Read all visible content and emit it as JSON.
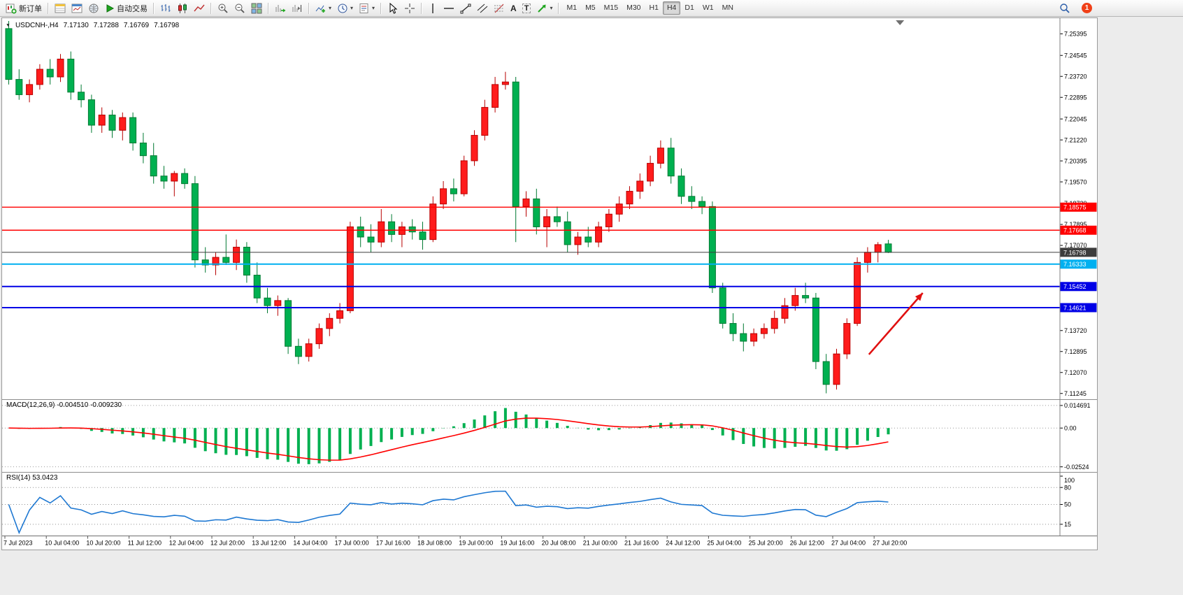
{
  "toolbar": {
    "new_order_label": "新订单",
    "autotrade_label": "自动交易",
    "timeframes": [
      "M1",
      "M5",
      "M15",
      "M30",
      "H1",
      "H4",
      "D1",
      "W1",
      "MN"
    ],
    "active_timeframe": "H4",
    "notification_badge": "1",
    "text_tool_label": "A",
    "label_tool_label": "T"
  },
  "chart_header": {
    "symbol_period": "USDCNH-,H4",
    "open": "7.17130",
    "high": "7.17288",
    "low": "7.16769",
    "close": "7.16798"
  },
  "chart_data": {
    "type": "candlestick",
    "symbol": "USDCNH-",
    "timeframe": "H4",
    "colors": {
      "up": "#FF1C1C",
      "up_border": "#B80000",
      "down": "#00B050",
      "down_border": "#007A32",
      "macd_hist": "#00B050",
      "macd_signal": "#FF0000",
      "rsi": "#1E78D2",
      "background": "#FFFFFF"
    },
    "price_axis": [
      "7.25395",
      "7.24545",
      "7.23720",
      "7.22895",
      "7.22045",
      "7.21220",
      "7.20395",
      "7.19570",
      "7.18720",
      "7.17895",
      "7.17070",
      "7.16245",
      "7.15395",
      "7.14570",
      "7.13720",
      "7.12895",
      "7.12070",
      "7.11245"
    ],
    "time_axis": [
      {
        "label": "7 Jul 2023",
        "i": 0
      },
      {
        "label": "10 Jul 04:00",
        "i": 4
      },
      {
        "label": "10 Jul 20:00",
        "i": 8
      },
      {
        "label": "11 Jul 12:00",
        "i": 12
      },
      {
        "label": "12 Jul 04:00",
        "i": 16
      },
      {
        "label": "12 Jul 20:00",
        "i": 20
      },
      {
        "label": "13 Jul 12:00",
        "i": 24
      },
      {
        "label": "14 Jul 04:00",
        "i": 28
      },
      {
        "label": "17 Jul 00:00",
        "i": 32
      },
      {
        "label": "17 Jul 16:00",
        "i": 36
      },
      {
        "label": "18 Jul 08:00",
        "i": 40
      },
      {
        "label": "19 Jul 00:00",
        "i": 44
      },
      {
        "label": "19 Jul 16:00",
        "i": 48
      },
      {
        "label": "20 Jul 08:00",
        "i": 52
      },
      {
        "label": "21 Jul 00:00",
        "i": 56
      },
      {
        "label": "21 Jul 16:00",
        "i": 60
      },
      {
        "label": "24 Jul 12:00",
        "i": 64
      },
      {
        "label": "25 Jul 04:00",
        "i": 68
      },
      {
        "label": "25 Jul 20:00",
        "i": 72
      },
      {
        "label": "26 Jul 12:00",
        "i": 76
      },
      {
        "label": "27 Jul 04:00",
        "i": 80
      },
      {
        "label": "27 Jul 20:00",
        "i": 84
      }
    ],
    "candles": [
      [
        7.256,
        7.259,
        7.234,
        7.236
      ],
      [
        7.236,
        7.24,
        7.228,
        7.23
      ],
      [
        7.23,
        7.236,
        7.227,
        7.234
      ],
      [
        7.234,
        7.242,
        7.232,
        7.24
      ],
      [
        7.24,
        7.244,
        7.234,
        7.237
      ],
      [
        7.237,
        7.246,
        7.235,
        7.244
      ],
      [
        7.244,
        7.247,
        7.228,
        7.231
      ],
      [
        7.231,
        7.234,
        7.225,
        7.228
      ],
      [
        7.228,
        7.23,
        7.215,
        7.218
      ],
      [
        7.218,
        7.225,
        7.215,
        7.222
      ],
      [
        7.222,
        7.224,
        7.213,
        7.216
      ],
      [
        7.216,
        7.223,
        7.212,
        7.221
      ],
      [
        7.221,
        7.223,
        7.208,
        7.211
      ],
      [
        7.211,
        7.215,
        7.203,
        7.206
      ],
      [
        7.206,
        7.211,
        7.195,
        7.198
      ],
      [
        7.198,
        7.202,
        7.193,
        7.196
      ],
      [
        7.196,
        7.2,
        7.19,
        7.199
      ],
      [
        7.199,
        7.201,
        7.193,
        7.195
      ],
      [
        7.195,
        7.198,
        7.162,
        7.165
      ],
      [
        7.165,
        7.17,
        7.16,
        7.163
      ],
      [
        7.163,
        7.168,
        7.159,
        7.166
      ],
      [
        7.166,
        7.175,
        7.163,
        7.164
      ],
      [
        7.164,
        7.173,
        7.161,
        7.17
      ],
      [
        7.17,
        7.172,
        7.156,
        7.159
      ],
      [
        7.159,
        7.164,
        7.148,
        7.15
      ],
      [
        7.15,
        7.154,
        7.144,
        7.147
      ],
      [
        7.147,
        7.151,
        7.143,
        7.149
      ],
      [
        7.149,
        7.15,
        7.128,
        7.131
      ],
      [
        7.131,
        7.134,
        7.124,
        7.127
      ],
      [
        7.127,
        7.134,
        7.125,
        7.132
      ],
      [
        7.132,
        7.14,
        7.13,
        7.138
      ],
      [
        7.138,
        7.144,
        7.135,
        7.142
      ],
      [
        7.142,
        7.148,
        7.14,
        7.145
      ],
      [
        7.145,
        7.18,
        7.144,
        7.178
      ],
      [
        7.178,
        7.182,
        7.17,
        7.174
      ],
      [
        7.174,
        7.179,
        7.168,
        7.172
      ],
      [
        7.172,
        7.185,
        7.17,
        7.18
      ],
      [
        7.18,
        7.183,
        7.172,
        7.175
      ],
      [
        7.175,
        7.18,
        7.17,
        7.178
      ],
      [
        7.178,
        7.181,
        7.173,
        7.176
      ],
      [
        7.176,
        7.18,
        7.169,
        7.173
      ],
      [
        7.173,
        7.19,
        7.172,
        7.187
      ],
      [
        7.187,
        7.196,
        7.185,
        7.193
      ],
      [
        7.193,
        7.197,
        7.188,
        7.191
      ],
      [
        7.191,
        7.206,
        7.19,
        7.204
      ],
      [
        7.204,
        7.216,
        7.202,
        7.214
      ],
      [
        7.214,
        7.228,
        7.212,
        7.225
      ],
      [
        7.225,
        7.237,
        7.223,
        7.234
      ],
      [
        7.234,
        7.239,
        7.232,
        7.235
      ],
      [
        7.235,
        7.237,
        7.172,
        7.186
      ],
      [
        7.186,
        7.192,
        7.182,
        7.189
      ],
      [
        7.189,
        7.193,
        7.175,
        7.178
      ],
      [
        7.178,
        7.185,
        7.17,
        7.182
      ],
      [
        7.182,
        7.186,
        7.178,
        7.18
      ],
      [
        7.18,
        7.184,
        7.168,
        7.171
      ],
      [
        7.171,
        7.176,
        7.167,
        7.174
      ],
      [
        7.174,
        7.178,
        7.17,
        7.172
      ],
      [
        7.172,
        7.18,
        7.17,
        7.178
      ],
      [
        7.178,
        7.185,
        7.176,
        7.183
      ],
      [
        7.183,
        7.19,
        7.18,
        7.187
      ],
      [
        7.187,
        7.194,
        7.185,
        7.192
      ],
      [
        7.192,
        7.199,
        7.189,
        7.196
      ],
      [
        7.196,
        7.206,
        7.194,
        7.203
      ],
      [
        7.203,
        7.212,
        7.201,
        7.209
      ],
      [
        7.209,
        7.213,
        7.195,
        7.198
      ],
      [
        7.198,
        7.201,
        7.187,
        7.19
      ],
      [
        7.19,
        7.194,
        7.185,
        7.188
      ],
      [
        7.188,
        7.19,
        7.183,
        7.186
      ],
      [
        7.186,
        7.188,
        7.152,
        7.154
      ],
      [
        7.154,
        7.156,
        7.138,
        7.14
      ],
      [
        7.14,
        7.144,
        7.133,
        7.136
      ],
      [
        7.136,
        7.14,
        7.129,
        7.133
      ],
      [
        7.133,
        7.138,
        7.131,
        7.136
      ],
      [
        7.136,
        7.14,
        7.134,
        7.138
      ],
      [
        7.138,
        7.145,
        7.136,
        7.142
      ],
      [
        7.142,
        7.15,
        7.14,
        7.147
      ],
      [
        7.147,
        7.154,
        7.145,
        7.151
      ],
      [
        7.151,
        7.156,
        7.148,
        7.15
      ],
      [
        7.15,
        7.152,
        7.122,
        7.125
      ],
      [
        7.125,
        7.128,
        7.1125,
        7.116
      ],
      [
        7.116,
        7.13,
        7.114,
        7.128
      ],
      [
        7.128,
        7.142,
        7.126,
        7.14
      ],
      [
        7.14,
        7.166,
        7.139,
        7.164
      ],
      [
        7.164,
        7.17,
        7.16,
        7.168
      ],
      [
        7.168,
        7.172,
        7.164,
        7.171
      ],
      [
        7.1713,
        7.17288,
        7.16769,
        7.16798
      ]
    ],
    "h_lines": [
      {
        "price": 7.18575,
        "label": "7.18575",
        "color": "#FF0000",
        "width": 1.4
      },
      {
        "price": 7.17668,
        "label": "7.17668",
        "color": "#FF0000",
        "width": 1.4
      },
      {
        "price": 7.16798,
        "label": "7.16798",
        "color": "#3C3C3C",
        "width": 1
      },
      {
        "price": 7.16333,
        "label": "7.16333",
        "color": "#00B0F0",
        "width": 2
      },
      {
        "price": 7.15452,
        "label": "7.15452",
        "color": "#0000E6",
        "width": 2
      },
      {
        "price": 7.14621,
        "label": "7.14621",
        "color": "#0000E6",
        "width": 2
      }
    ],
    "current_price": "7.16798",
    "macd": {
      "title": "MACD(12,26,9) -0.004510 -0.009230",
      "params": "12,26,9",
      "value_macd": "-0.004510",
      "value_signal": "-0.009230",
      "axis": [
        "0.014691",
        "0.00",
        "-0.02524"
      ]
    },
    "rsi": {
      "title": "RSI(14) 53.0423",
      "period": "14",
      "value": "53.0423",
      "levels": [
        100,
        80,
        50,
        15
      ]
    },
    "arrow": {
      "i1": 83.5,
      "p1": 7.1278,
      "i2": 88.7,
      "p2": 7.152,
      "color": "#E01010"
    },
    "shift_marker_i": 86.5
  }
}
